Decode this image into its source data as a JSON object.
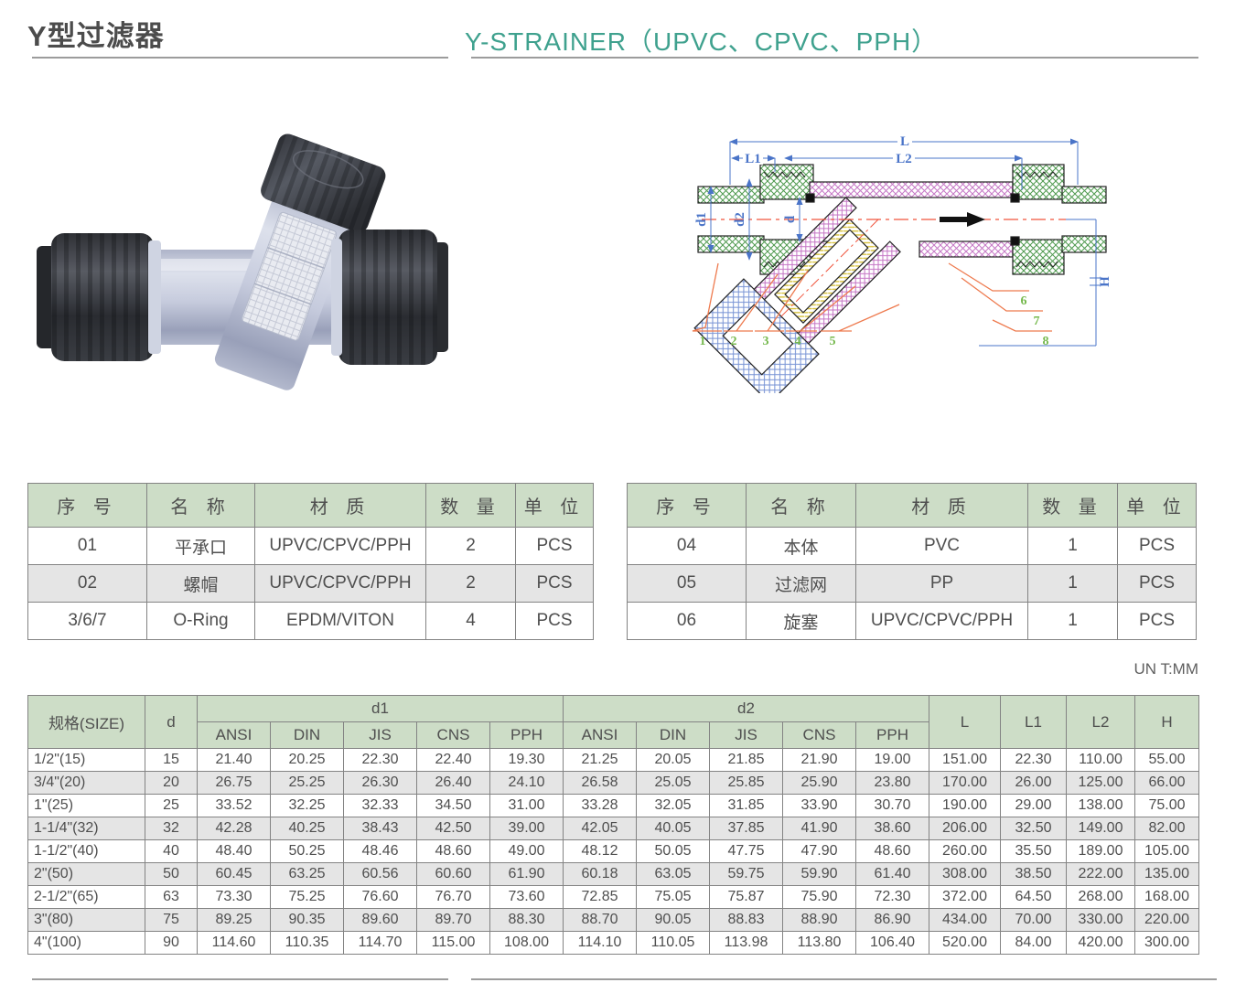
{
  "header": {
    "title_cn": "Y型过滤器",
    "title_en": "Y-STRAINER（UPVC、CPVC、PPH）",
    "accent_color": "#3fa18e"
  },
  "unit_note": "UN T:MM",
  "parts_tables": {
    "headers": [
      "序 号",
      "名 称",
      "材 质",
      "数 量",
      "单 位"
    ],
    "left_rows": [
      [
        "01",
        "平承口",
        "UPVC/CPVC/PPH",
        "2",
        "PCS"
      ],
      [
        "02",
        "螺帽",
        "UPVC/CPVC/PPH",
        "2",
        "PCS"
      ],
      [
        "3/6/7",
        "O-Ring",
        "EPDM/VITON",
        "4",
        "PCS"
      ]
    ],
    "right_rows": [
      [
        "04",
        "本体",
        "PVC",
        "1",
        "PCS"
      ],
      [
        "05",
        "过滤网",
        "PP",
        "1",
        "PCS"
      ],
      [
        "06",
        "旋塞",
        "UPVC/CPVC/PPH",
        "1",
        "PCS"
      ]
    ]
  },
  "diagram": {
    "dims": {
      "L": "L",
      "L1": "L1",
      "L2": "L2",
      "d": "d",
      "d1": "d1",
      "d2": "d2",
      "H": "H"
    },
    "parts": [
      "1",
      "2",
      "3",
      "4",
      "5",
      "6",
      "7",
      "8"
    ],
    "colors": {
      "dimension_blue": "#4a74c8",
      "leader_orange": "#ee7a4e",
      "part_number_green": "#76b94e",
      "body_hatch_purple": "#c678c6",
      "socket_hatch_green": "#4f9a4f",
      "plug_hatch_blue": "#7a95d6",
      "screen_hatch_yellow": "#d8c23c",
      "centerline_red": "#f0543c"
    }
  },
  "size_table": {
    "headers": {
      "size": "规格(SIZE)",
      "d": "d",
      "d1": "d1",
      "d2": "d2",
      "L": "L",
      "L1": "L1",
      "L2": "L2",
      "H": "H"
    },
    "sub_headers": [
      "ANSI",
      "DIN",
      "JIS",
      "CNS",
      "PPH",
      "ANSI",
      "DIN",
      "JIS",
      "CNS",
      "PPH"
    ],
    "rows": [
      [
        "1/2\"(15)",
        "15",
        "21.40",
        "20.25",
        "22.30",
        "22.40",
        "19.30",
        "21.25",
        "20.05",
        "21.85",
        "21.90",
        "19.00",
        "151.00",
        "22.30",
        "110.00",
        "55.00"
      ],
      [
        "3/4\"(20)",
        "20",
        "26.75",
        "25.25",
        "26.30",
        "26.40",
        "24.10",
        "26.58",
        "25.05",
        "25.85",
        "25.90",
        "23.80",
        "170.00",
        "26.00",
        "125.00",
        "66.00"
      ],
      [
        "1\"(25)",
        "25",
        "33.52",
        "32.25",
        "32.33",
        "34.50",
        "31.00",
        "33.28",
        "32.05",
        "31.85",
        "33.90",
        "30.70",
        "190.00",
        "29.00",
        "138.00",
        "75.00"
      ],
      [
        "1-1/4\"(32)",
        "32",
        "42.28",
        "40.25",
        "38.43",
        "42.50",
        "39.00",
        "42.05",
        "40.05",
        "37.85",
        "41.90",
        "38.60",
        "206.00",
        "32.50",
        "149.00",
        "82.00"
      ],
      [
        "1-1/2\"(40)",
        "40",
        "48.40",
        "50.25",
        "48.46",
        "48.60",
        "49.00",
        "48.12",
        "50.05",
        "47.75",
        "47.90",
        "48.60",
        "260.00",
        "35.50",
        "189.00",
        "105.00"
      ],
      [
        "2\"(50)",
        "50",
        "60.45",
        "63.25",
        "60.56",
        "60.60",
        "61.90",
        "60.18",
        "63.05",
        "59.75",
        "59.90",
        "61.40",
        "308.00",
        "38.50",
        "222.00",
        "135.00"
      ],
      [
        "2-1/2\"(65)",
        "63",
        "73.30",
        "75.25",
        "76.60",
        "76.70",
        "73.60",
        "72.85",
        "75.05",
        "75.87",
        "75.90",
        "72.30",
        "372.00",
        "64.50",
        "268.00",
        "168.00"
      ],
      [
        "3\"(80)",
        "75",
        "89.25",
        "90.35",
        "89.60",
        "89.70",
        "88.30",
        "88.70",
        "90.05",
        "88.83",
        "88.90",
        "86.90",
        "434.00",
        "70.00",
        "330.00",
        "220.00"
      ],
      [
        "4\"(100)",
        "90",
        "114.60",
        "110.35",
        "114.70",
        "115.00",
        "108.00",
        "114.10",
        "110.05",
        "113.98",
        "113.80",
        "106.40",
        "520.00",
        "84.00",
        "420.00",
        "300.00"
      ]
    ]
  }
}
